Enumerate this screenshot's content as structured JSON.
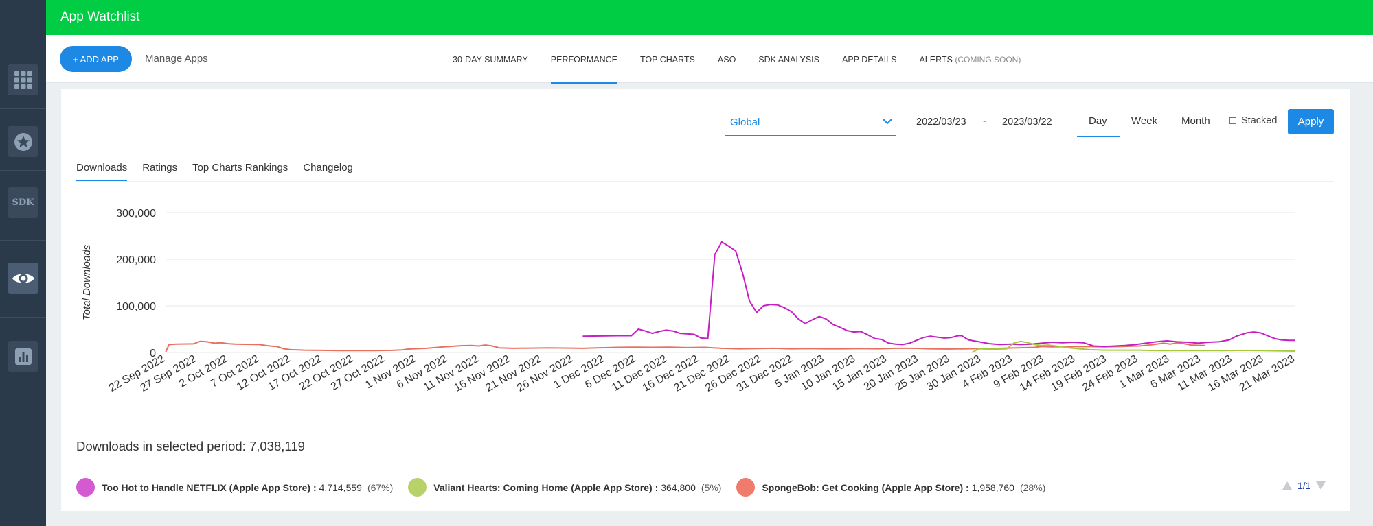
{
  "app": {
    "title": "App Watchlist"
  },
  "header": {
    "add_button": "+ ADD APP",
    "manage": "Manage Apps",
    "tabs": [
      {
        "label": "30-DAY SUMMARY"
      },
      {
        "label": "PERFORMANCE"
      },
      {
        "label": "TOP CHARTS"
      },
      {
        "label": "ASO"
      },
      {
        "label": "SDK ANALYSIS"
      },
      {
        "label": "APP DETAILS"
      },
      {
        "label": "ALERTS",
        "suffix": "(COMING SOON)"
      }
    ],
    "active_tab": "PERFORMANCE"
  },
  "sidebar": {
    "sdk_label": "SDK"
  },
  "filters": {
    "region": "Global",
    "date_from": "2022/03/23",
    "date_sep": "-",
    "date_to": "2023/03/22",
    "granularity": [
      "Day",
      "Week",
      "Month"
    ],
    "selected_granularity": "Day",
    "stacked_label": "Stacked",
    "apply_label": "Apply"
  },
  "subtabs": [
    {
      "label": "Downloads"
    },
    {
      "label": "Ratings"
    },
    {
      "label": "Top Charts Rankings"
    },
    {
      "label": "Changelog"
    }
  ],
  "chart_data": {
    "type": "line",
    "ylabel": "Total Downloads",
    "xlabel": "",
    "ylim": [
      0,
      300000
    ],
    "yticks": [
      "300,000",
      "200,000",
      "100,000",
      "0"
    ],
    "ytick_values": [
      300000,
      200000,
      100000,
      0
    ],
    "x_start": "2022-09-22",
    "x_end": "2023-03-21",
    "xticks": [
      "22 Sep 2022",
      "27 Sep 2022",
      "2 Oct 2022",
      "7 Oct 2022",
      "12 Oct 2022",
      "17 Oct 2022",
      "22 Oct 2022",
      "27 Oct 2022",
      "1 Nov 2022",
      "6 Nov 2022",
      "11 Nov 2022",
      "16 Nov 2022",
      "21 Nov 2022",
      "26 Nov 2022",
      "1 Dec 2022",
      "6 Dec 2022",
      "11 Dec 2022",
      "16 Dec 2022",
      "21 Dec 2022",
      "26 Dec 2022",
      "31 Dec 2022",
      "5 Jan 2023",
      "10 Jan 2023",
      "15 Jan 2023",
      "20 Jan 2023",
      "25 Jan 2023",
      "30 Jan 2023",
      "4 Feb 2023",
      "9 Feb 2023",
      "14 Feb 2023",
      "19 Feb 2023",
      "24 Feb 2023",
      "1 Mar 2023",
      "6 Mar 2023",
      "11 Mar 2023",
      "16 Mar 2023",
      "21 Mar 2023"
    ],
    "series": [
      {
        "name": "SpongeBob: Get Cooking (Apple App Store)",
        "color": "#e8705f",
        "points": [
          [
            0,
            0
          ],
          [
            1,
            17000
          ],
          [
            3,
            18000
          ],
          [
            8,
            18500
          ],
          [
            10,
            24000
          ],
          [
            12,
            23000
          ],
          [
            14,
            20000
          ],
          [
            16,
            21000
          ],
          [
            18,
            19000
          ],
          [
            20,
            18000
          ],
          [
            24,
            17500
          ],
          [
            27,
            17000
          ],
          [
            30,
            14000
          ],
          [
            32,
            13000
          ],
          [
            34,
            8000
          ],
          [
            36,
            6000
          ],
          [
            40,
            5000
          ],
          [
            45,
            4500
          ],
          [
            50,
            4000
          ],
          [
            55,
            4000
          ],
          [
            60,
            4000
          ],
          [
            65,
            4500
          ],
          [
            68,
            5500
          ],
          [
            70,
            7500
          ],
          [
            75,
            9000
          ],
          [
            80,
            12000
          ],
          [
            85,
            14500
          ],
          [
            88,
            15000
          ],
          [
            90,
            14000
          ],
          [
            92,
            16000
          ],
          [
            94,
            14000
          ],
          [
            96,
            10000
          ],
          [
            100,
            9000
          ],
          [
            110,
            10000
          ],
          [
            115,
            9500
          ],
          [
            120,
            9000
          ],
          [
            124,
            10000
          ],
          [
            130,
            11000
          ],
          [
            135,
            11500
          ],
          [
            140,
            11000
          ],
          [
            145,
            11500
          ],
          [
            150,
            10500
          ],
          [
            155,
            11000
          ],
          [
            160,
            9000
          ],
          [
            165,
            8000
          ],
          [
            170,
            8500
          ],
          [
            175,
            9000
          ],
          [
            180,
            8000
          ],
          [
            185,
            8500
          ],
          [
            190,
            8000
          ],
          [
            195,
            8000
          ],
          [
            200,
            8500
          ],
          [
            205,
            8000
          ],
          [
            210,
            9000
          ],
          [
            215,
            9000
          ],
          [
            220,
            8000
          ],
          [
            225,
            7500
          ],
          [
            230,
            8000
          ],
          [
            235,
            8500
          ],
          [
            240,
            9000
          ],
          [
            245,
            10000
          ],
          [
            250,
            11000
          ],
          [
            252,
            13000
          ],
          [
            255,
            12000
          ],
          [
            260,
            12500
          ],
          [
            265,
            13000
          ],
          [
            270,
            12000
          ],
          [
            275,
            13000
          ],
          [
            280,
            14000
          ],
          [
            283,
            16000
          ],
          [
            285,
            18000
          ],
          [
            287,
            20000
          ],
          [
            289,
            18000
          ],
          [
            291,
            21000
          ],
          [
            293,
            19000
          ],
          [
            295,
            16000
          ],
          [
            297,
            15500
          ],
          [
            299,
            15000
          ]
        ]
      },
      {
        "name": "Too Hot to Handle NETFLIX (Apple App Store)",
        "color": "#c41ec4",
        "points": [
          [
            120,
            35000
          ],
          [
            130,
            36000
          ],
          [
            134,
            36000
          ],
          [
            136,
            50000
          ],
          [
            138,
            46000
          ],
          [
            140,
            41000
          ],
          [
            142,
            45000
          ],
          [
            144,
            48000
          ],
          [
            146,
            46000
          ],
          [
            148,
            41000
          ],
          [
            150,
            40000
          ],
          [
            152,
            39000
          ],
          [
            154,
            31000
          ],
          [
            156,
            30000
          ],
          [
            158,
            210000
          ],
          [
            160,
            237000
          ],
          [
            162,
            228000
          ],
          [
            164,
            218000
          ],
          [
            166,
            170000
          ],
          [
            168,
            110000
          ],
          [
            170,
            86000
          ],
          [
            172,
            100000
          ],
          [
            174,
            103000
          ],
          [
            176,
            102000
          ],
          [
            178,
            96000
          ],
          [
            180,
            88000
          ],
          [
            182,
            72000
          ],
          [
            184,
            62000
          ],
          [
            186,
            70000
          ],
          [
            188,
            77000
          ],
          [
            190,
            72000
          ],
          [
            192,
            60000
          ],
          [
            194,
            54000
          ],
          [
            196,
            47000
          ],
          [
            198,
            44000
          ],
          [
            200,
            45000
          ],
          [
            202,
            38000
          ],
          [
            204,
            30000
          ],
          [
            206,
            28000
          ],
          [
            208,
            20000
          ],
          [
            210,
            18000
          ],
          [
            212,
            17000
          ],
          [
            214,
            20000
          ],
          [
            216,
            26000
          ],
          [
            218,
            32000
          ],
          [
            220,
            35000
          ],
          [
            222,
            33000
          ],
          [
            224,
            31000
          ],
          [
            226,
            32000
          ],
          [
            228,
            36000
          ],
          [
            229,
            36000
          ],
          [
            231,
            27000
          ],
          [
            234,
            23000
          ],
          [
            237,
            19000
          ],
          [
            240,
            17000
          ],
          [
            243,
            18000
          ],
          [
            246,
            17000
          ],
          [
            249,
            18000
          ],
          [
            252,
            20000
          ],
          [
            255,
            22000
          ],
          [
            258,
            21000
          ],
          [
            261,
            22000
          ],
          [
            264,
            21000
          ],
          [
            267,
            14000
          ],
          [
            270,
            13000
          ],
          [
            273,
            14000
          ],
          [
            276,
            15000
          ],
          [
            279,
            17000
          ],
          [
            282,
            20000
          ],
          [
            285,
            23000
          ],
          [
            288,
            25000
          ],
          [
            291,
            23000
          ],
          [
            294,
            22000
          ],
          [
            297,
            20000
          ],
          [
            300,
            22000
          ],
          [
            303,
            23000
          ],
          [
            306,
            27000
          ],
          [
            308,
            35000
          ],
          [
            311,
            42000
          ],
          [
            313,
            44000
          ],
          [
            315,
            42000
          ],
          [
            317,
            36000
          ],
          [
            319,
            30000
          ],
          [
            321,
            27000
          ],
          [
            323,
            26000
          ],
          [
            325,
            26000
          ]
        ]
      },
      {
        "name": "Valiant Hearts: Coming Home (Apple App Store)",
        "color": "#a8c93c",
        "points": [
          [
            232,
            0
          ],
          [
            234,
            8000
          ],
          [
            238,
            7000
          ],
          [
            242,
            8000
          ],
          [
            244,
            20000
          ],
          [
            246,
            24000
          ],
          [
            248,
            21000
          ],
          [
            250,
            17000
          ],
          [
            252,
            15000
          ],
          [
            254,
            16000
          ],
          [
            256,
            14000
          ],
          [
            258,
            12000
          ],
          [
            260,
            10000
          ],
          [
            263,
            8000
          ],
          [
            266,
            6000
          ],
          [
            270,
            5000
          ],
          [
            275,
            5000
          ],
          [
            280,
            5000
          ],
          [
            285,
            4000
          ],
          [
            290,
            4000
          ],
          [
            295,
            4000
          ],
          [
            300,
            4000
          ],
          [
            305,
            4000
          ],
          [
            310,
            4500
          ],
          [
            315,
            4000
          ],
          [
            320,
            3500
          ],
          [
            325,
            3000
          ]
        ]
      }
    ]
  },
  "summary": {
    "label": "Downloads in selected period:",
    "value": "7,038,119"
  },
  "legend": [
    {
      "name": "Too Hot to Handle NETFLIX (Apple App Store) :",
      "value": "4,714,559",
      "pct": "(67%)",
      "color": "#d45ad1"
    },
    {
      "name": "Valiant Hearts: Coming Home (Apple App Store) :",
      "value": "364,800",
      "pct": "(5%)",
      "color": "#b8d26a"
    },
    {
      "name": "SpongeBob: Get Cooking (Apple App Store) :",
      "value": "1,958,760",
      "pct": "(28%)",
      "color": "#ef7b6d"
    }
  ],
  "pager": {
    "label": "1/1"
  }
}
